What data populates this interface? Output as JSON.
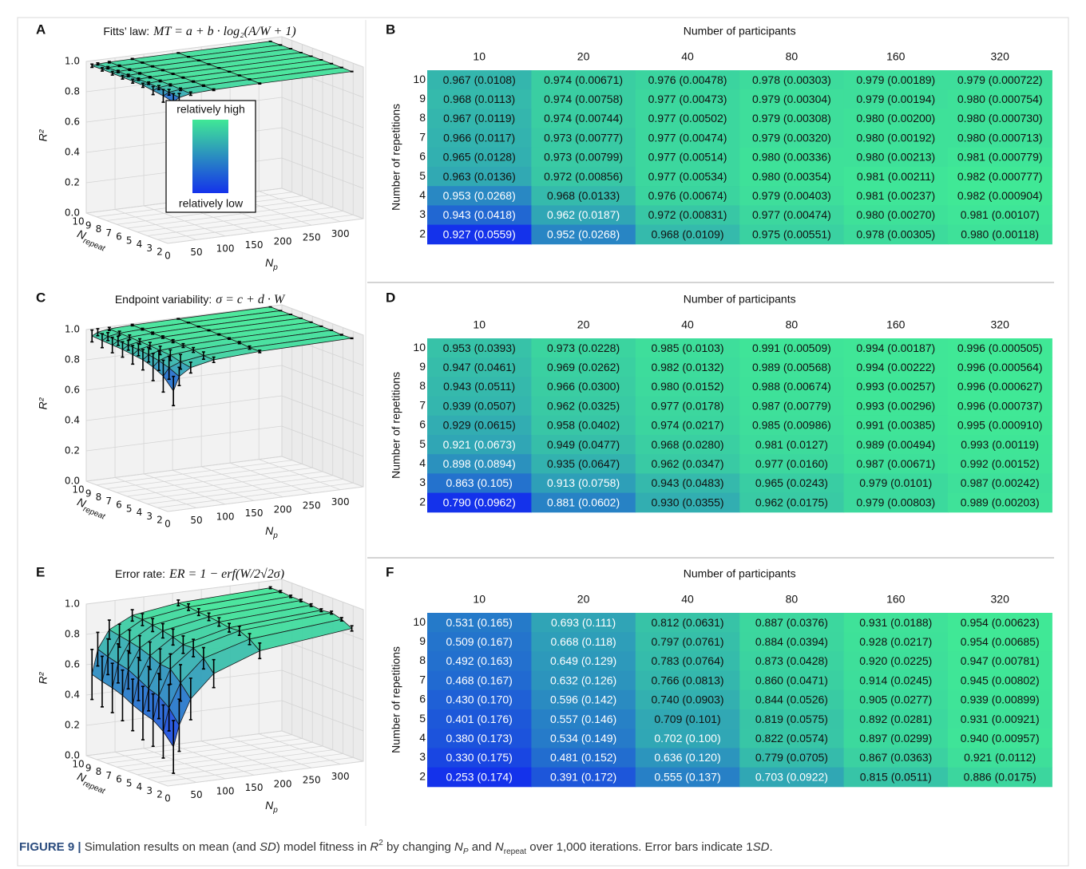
{
  "chart_data": [
    {
      "type": "surface3d",
      "panel": "A",
      "title": "Fitts’ law:",
      "formula": "MT = a + b · log₂(A/W + 1)",
      "zlabel": "R²",
      "xlabel": {
        "main": "N",
        "sub": "p"
      },
      "ylabel": {
        "main": "N",
        "sub": "repeat"
      },
      "xlim": [
        0,
        340
      ],
      "ylim": [
        2,
        10
      ],
      "zlim": [
        0,
        1
      ],
      "xticks": [
        0,
        50,
        100,
        150,
        200,
        250,
        300
      ],
      "yticks": [
        10,
        9,
        8,
        7,
        6,
        5,
        4,
        3,
        2
      ],
      "zticks": [
        {
          "value": 0,
          "label": "0.0"
        },
        {
          "value": 0.2,
          "label": "0.2"
        },
        {
          "value": 0.4,
          "label": "0.4"
        },
        {
          "value": 0.6,
          "label": "0.6"
        },
        {
          "value": 0.8,
          "label": "0.8"
        },
        {
          "value": 1,
          "label": "1.0"
        }
      ],
      "colorbar": {
        "high": "relatively high",
        "low": "relatively low"
      }
    },
    {
      "type": "heatmap",
      "panel": "B",
      "title": "Number of participants",
      "ylabel": "Number of repetitions",
      "x": [
        10,
        20,
        40,
        80,
        160,
        320
      ],
      "y": [
        10,
        9,
        8,
        7,
        6,
        5,
        4,
        3,
        2
      ],
      "colors": [
        "#1432eb",
        "#40e896"
      ],
      "values": [
        [
          0.967,
          0.974,
          0.976,
          0.978,
          0.979,
          0.979
        ],
        [
          0.968,
          0.974,
          0.977,
          0.979,
          0.979,
          0.98
        ],
        [
          0.967,
          0.974,
          0.977,
          0.979,
          0.98,
          0.98
        ],
        [
          0.966,
          0.973,
          0.977,
          0.979,
          0.98,
          0.98
        ],
        [
          0.965,
          0.973,
          0.977,
          0.98,
          0.98,
          0.981
        ],
        [
          0.963,
          0.972,
          0.977,
          0.98,
          0.981,
          0.982
        ],
        [
          0.953,
          0.968,
          0.976,
          0.979,
          0.981,
          0.982
        ],
        [
          0.943,
          0.962,
          0.972,
          0.977,
          0.98,
          0.981
        ],
        [
          0.927,
          0.952,
          0.968,
          0.975,
          0.978,
          0.98
        ]
      ],
      "sd": [
        [
          0.0108,
          0.00671,
          0.00478,
          0.00303,
          0.00189,
          0.000722
        ],
        [
          0.0113,
          0.00758,
          0.00473,
          0.00304,
          0.00194,
          0.000754
        ],
        [
          0.0119,
          0.00744,
          0.00502,
          0.00308,
          0.002,
          0.00073
        ],
        [
          0.0117,
          0.00777,
          0.00474,
          0.0032,
          0.00192,
          0.000713
        ],
        [
          0.0128,
          0.00799,
          0.00514,
          0.00336,
          0.00213,
          0.000779
        ],
        [
          0.0136,
          0.00856,
          0.00534,
          0.00354,
          0.00211,
          0.000777
        ],
        [
          0.0268,
          0.0133,
          0.00674,
          0.00403,
          0.00237,
          0.000904
        ],
        [
          0.0418,
          0.0187,
          0.00831,
          0.00474,
          0.0027,
          0.00107
        ],
        [
          0.0559,
          0.0268,
          0.0109,
          0.00551,
          0.00305,
          0.00118
        ]
      ],
      "value_labels": [
        [
          "0.967 (0.0108)",
          "0.974 (0.00671)",
          "0.976 (0.00478)",
          "0.978 (0.00303)",
          "0.979 (0.00189)",
          "0.979 (0.000722)"
        ],
        [
          "0.968 (0.0113)",
          "0.974 (0.00758)",
          "0.977 (0.00473)",
          "0.979 (0.00304)",
          "0.979 (0.00194)",
          "0.980 (0.000754)"
        ],
        [
          "0.967 (0.0119)",
          "0.974 (0.00744)",
          "0.977 (0.00502)",
          "0.979 (0.00308)",
          "0.980 (0.00200)",
          "0.980 (0.000730)"
        ],
        [
          "0.966 (0.0117)",
          "0.973 (0.00777)",
          "0.977 (0.00474)",
          "0.979 (0.00320)",
          "0.980 (0.00192)",
          "0.980 (0.000713)"
        ],
        [
          "0.965 (0.0128)",
          "0.973 (0.00799)",
          "0.977 (0.00514)",
          "0.980 (0.00336)",
          "0.980 (0.00213)",
          "0.981 (0.000779)"
        ],
        [
          "0.963 (0.0136)",
          "0.972 (0.00856)",
          "0.977 (0.00534)",
          "0.980 (0.00354)",
          "0.981 (0.00211)",
          "0.982 (0.000777)"
        ],
        [
          "0.953 (0.0268)",
          "0.968 (0.0133)",
          "0.976 (0.00674)",
          "0.979 (0.00403)",
          "0.981 (0.00237)",
          "0.982 (0.000904)"
        ],
        [
          "0.943 (0.0418)",
          "0.962 (0.0187)",
          "0.972 (0.00831)",
          "0.977 (0.00474)",
          "0.980 (0.00270)",
          "0.981 (0.00107)"
        ],
        [
          "0.927 (0.0559)",
          "0.952 (0.0268)",
          "0.968 (0.0109)",
          "0.975 (0.00551)",
          "0.978 (0.00305)",
          "0.980 (0.00118)"
        ]
      ]
    },
    {
      "type": "surface3d",
      "panel": "C",
      "title": "Endpoint variability:",
      "formula": "σ = c + d · W",
      "zlabel": "R²",
      "xlabel": {
        "main": "N",
        "sub": "p"
      },
      "ylabel": {
        "main": "N",
        "sub": "repeat"
      },
      "xlim": [
        0,
        340
      ],
      "ylim": [
        2,
        10
      ],
      "zlim": [
        0,
        1
      ],
      "xticks": [
        0,
        50,
        100,
        150,
        200,
        250,
        300
      ],
      "yticks": [
        10,
        9,
        8,
        7,
        6,
        5,
        4,
        3,
        2
      ],
      "zticks": [
        {
          "value": 0,
          "label": "0.0"
        },
        {
          "value": 0.2,
          "label": "0.2"
        },
        {
          "value": 0.4,
          "label": "0.4"
        },
        {
          "value": 0.6,
          "label": "0.6"
        },
        {
          "value": 0.8,
          "label": "0.8"
        },
        {
          "value": 1,
          "label": "1.0"
        }
      ]
    },
    {
      "type": "heatmap",
      "panel": "D",
      "title": "Number of participants",
      "ylabel": "Number of repetitions",
      "x": [
        10,
        20,
        40,
        80,
        160,
        320
      ],
      "y": [
        10,
        9,
        8,
        7,
        6,
        5,
        4,
        3,
        2
      ],
      "colors": [
        "#1432eb",
        "#40e896"
      ],
      "values": [
        [
          0.953,
          0.973,
          0.985,
          0.991,
          0.994,
          0.996
        ],
        [
          0.947,
          0.969,
          0.982,
          0.989,
          0.994,
          0.996
        ],
        [
          0.943,
          0.966,
          0.98,
          0.988,
          0.993,
          0.996
        ],
        [
          0.939,
          0.962,
          0.977,
          0.987,
          0.993,
          0.996
        ],
        [
          0.929,
          0.958,
          0.974,
          0.985,
          0.991,
          0.995
        ],
        [
          0.921,
          0.949,
          0.968,
          0.981,
          0.989,
          0.993
        ],
        [
          0.898,
          0.935,
          0.962,
          0.977,
          0.987,
          0.992
        ],
        [
          0.863,
          0.913,
          0.943,
          0.965,
          0.979,
          0.987
        ],
        [
          0.79,
          0.881,
          0.93,
          0.962,
          0.979,
          0.989
        ]
      ],
      "sd": [
        [
          0.0393,
          0.0228,
          0.0103,
          0.00509,
          0.00187,
          0.000505
        ],
        [
          0.0461,
          0.0262,
          0.0132,
          0.00568,
          0.00222,
          0.000564
        ],
        [
          0.0511,
          0.03,
          0.0152,
          0.00674,
          0.00257,
          0.000627
        ],
        [
          0.0507,
          0.0325,
          0.0178,
          0.00779,
          0.00296,
          0.000737
        ],
        [
          0.0615,
          0.0402,
          0.0217,
          0.00986,
          0.00385,
          0.00091
        ],
        [
          0.0673,
          0.0477,
          0.028,
          0.0127,
          0.00494,
          0.00119
        ],
        [
          0.0894,
          0.0647,
          0.0347,
          0.016,
          0.00671,
          0.00152
        ],
        [
          0.105,
          0.0758,
          0.0483,
          0.0243,
          0.0101,
          0.00242
        ],
        [
          0.0962,
          0.0602,
          0.0355,
          0.0175,
          0.00803,
          0.00203
        ]
      ],
      "value_labels": [
        [
          "0.953 (0.0393)",
          "0.973 (0.0228)",
          "0.985 (0.0103)",
          "0.991 (0.00509)",
          "0.994 (0.00187)",
          "0.996 (0.000505)"
        ],
        [
          "0.947 (0.0461)",
          "0.969 (0.0262)",
          "0.982 (0.0132)",
          "0.989 (0.00568)",
          "0.994 (0.00222)",
          "0.996 (0.000564)"
        ],
        [
          "0.943 (0.0511)",
          "0.966 (0.0300)",
          "0.980 (0.0152)",
          "0.988 (0.00674)",
          "0.993 (0.00257)",
          "0.996 (0.000627)"
        ],
        [
          "0.939 (0.0507)",
          "0.962 (0.0325)",
          "0.977 (0.0178)",
          "0.987 (0.00779)",
          "0.993 (0.00296)",
          "0.996 (0.000737)"
        ],
        [
          "0.929 (0.0615)",
          "0.958 (0.0402)",
          "0.974 (0.0217)",
          "0.985 (0.00986)",
          "0.991 (0.00385)",
          "0.995 (0.000910)"
        ],
        [
          "0.921 (0.0673)",
          "0.949 (0.0477)",
          "0.968 (0.0280)",
          "0.981 (0.0127)",
          "0.989 (0.00494)",
          "0.993 (0.00119)"
        ],
        [
          "0.898 (0.0894)",
          "0.935 (0.0647)",
          "0.962 (0.0347)",
          "0.977 (0.0160)",
          "0.987 (0.00671)",
          "0.992 (0.00152)"
        ],
        [
          "0.863 (0.105)",
          "0.913 (0.0758)",
          "0.943 (0.0483)",
          "0.965 (0.0243)",
          "0.979 (0.0101)",
          "0.987 (0.00242)"
        ],
        [
          "0.790 (0.0962)",
          "0.881 (0.0602)",
          "0.930 (0.0355)",
          "0.962 (0.0175)",
          "0.979 (0.00803)",
          "0.989 (0.00203)"
        ]
      ]
    },
    {
      "type": "surface3d",
      "panel": "E",
      "title": "Error rate:",
      "formula": "ER = 1 − erf(W/2√2σ)",
      "zlabel": "R²",
      "xlabel": {
        "main": "N",
        "sub": "p"
      },
      "ylabel": {
        "main": "N",
        "sub": "repeat"
      },
      "xlim": [
        0,
        340
      ],
      "ylim": [
        2,
        10
      ],
      "zlim": [
        0,
        1
      ],
      "xticks": [
        0,
        50,
        100,
        150,
        200,
        250,
        300
      ],
      "yticks": [
        10,
        9,
        8,
        7,
        6,
        5,
        4,
        3,
        2
      ],
      "zticks": [
        {
          "value": 0,
          "label": "0.0"
        },
        {
          "value": 0.2,
          "label": "0.2"
        },
        {
          "value": 0.4,
          "label": "0.4"
        },
        {
          "value": 0.6,
          "label": "0.6"
        },
        {
          "value": 0.8,
          "label": "0.8"
        },
        {
          "value": 1,
          "label": "1.0"
        }
      ]
    },
    {
      "type": "heatmap",
      "panel": "F",
      "title": "Number of participants",
      "ylabel": "Number of repetitions",
      "x": [
        10,
        20,
        40,
        80,
        160,
        320
      ],
      "y": [
        10,
        9,
        8,
        7,
        6,
        5,
        4,
        3,
        2
      ],
      "colors": [
        "#1432eb",
        "#40e896"
      ],
      "values": [
        [
          0.531,
          0.693,
          0.812,
          0.887,
          0.931,
          0.954
        ],
        [
          0.509,
          0.668,
          0.797,
          0.884,
          0.928,
          0.954
        ],
        [
          0.492,
          0.649,
          0.783,
          0.873,
          0.92,
          0.947
        ],
        [
          0.468,
          0.632,
          0.766,
          0.86,
          0.914,
          0.945
        ],
        [
          0.43,
          0.596,
          0.74,
          0.844,
          0.905,
          0.939
        ],
        [
          0.401,
          0.557,
          0.709,
          0.819,
          0.892,
          0.931
        ],
        [
          0.38,
          0.534,
          0.702,
          0.822,
          0.897,
          0.94
        ],
        [
          0.33,
          0.481,
          0.636,
          0.779,
          0.867,
          0.921
        ],
        [
          0.253,
          0.391,
          0.555,
          0.703,
          0.815,
          0.886
        ]
      ],
      "sd": [
        [
          0.165,
          0.111,
          0.0631,
          0.0376,
          0.0188,
          0.00623
        ],
        [
          0.167,
          0.118,
          0.0761,
          0.0394,
          0.0217,
          0.00685
        ],
        [
          0.163,
          0.129,
          0.0764,
          0.0428,
          0.0225,
          0.00781
        ],
        [
          0.167,
          0.126,
          0.0813,
          0.0471,
          0.0245,
          0.00802
        ],
        [
          0.17,
          0.142,
          0.0903,
          0.0526,
          0.0277,
          0.00899
        ],
        [
          0.176,
          0.146,
          0.101,
          0.0575,
          0.0281,
          0.00921
        ],
        [
          0.173,
          0.149,
          0.1,
          0.0574,
          0.0299,
          0.00957
        ],
        [
          0.175,
          0.152,
          0.12,
          0.0705,
          0.0363,
          0.0112
        ],
        [
          0.174,
          0.172,
          0.137,
          0.0922,
          0.0511,
          0.0175
        ]
      ],
      "value_labels": [
        [
          "0.531 (0.165)",
          "0.693 (0.111)",
          "0.812 (0.0631)",
          "0.887 (0.0376)",
          "0.931 (0.0188)",
          "0.954 (0.00623)"
        ],
        [
          "0.509 (0.167)",
          "0.668 (0.118)",
          "0.797 (0.0761)",
          "0.884 (0.0394)",
          "0.928 (0.0217)",
          "0.954 (0.00685)"
        ],
        [
          "0.492 (0.163)",
          "0.649 (0.129)",
          "0.783 (0.0764)",
          "0.873 (0.0428)",
          "0.920 (0.0225)",
          "0.947 (0.00781)"
        ],
        [
          "0.468 (0.167)",
          "0.632 (0.126)",
          "0.766 (0.0813)",
          "0.860 (0.0471)",
          "0.914 (0.0245)",
          "0.945 (0.00802)"
        ],
        [
          "0.430 (0.170)",
          "0.596 (0.142)",
          "0.740 (0.0903)",
          "0.844 (0.0526)",
          "0.905 (0.0277)",
          "0.939 (0.00899)"
        ],
        [
          "0.401 (0.176)",
          "0.557 (0.146)",
          "0.709 (0.101)",
          "0.819 (0.0575)",
          "0.892 (0.0281)",
          "0.931 (0.00921)"
        ],
        [
          "0.380 (0.173)",
          "0.534 (0.149)",
          "0.702 (0.100)",
          "0.822 (0.0574)",
          "0.897 (0.0299)",
          "0.940 (0.00957)"
        ],
        [
          "0.330 (0.175)",
          "0.481 (0.152)",
          "0.636 (0.120)",
          "0.779 (0.0705)",
          "0.867 (0.0363)",
          "0.921 (0.0112)"
        ],
        [
          "0.253 (0.174)",
          "0.391 (0.172)",
          "0.555 (0.137)",
          "0.703 (0.0922)",
          "0.815 (0.0511)",
          "0.886 (0.0175)"
        ]
      ]
    }
  ],
  "caption": {
    "label": "FIGURE 9 |",
    "parts": [
      " Simulation results on mean (and ",
      "SD",
      ") model fitness in ",
      "R",
      "2",
      " by changing ",
      "N",
      "P",
      " and ",
      "N",
      "repeat",
      " over 1,000 iterations. Error bars indicate 1",
      "SD",
      "."
    ]
  }
}
